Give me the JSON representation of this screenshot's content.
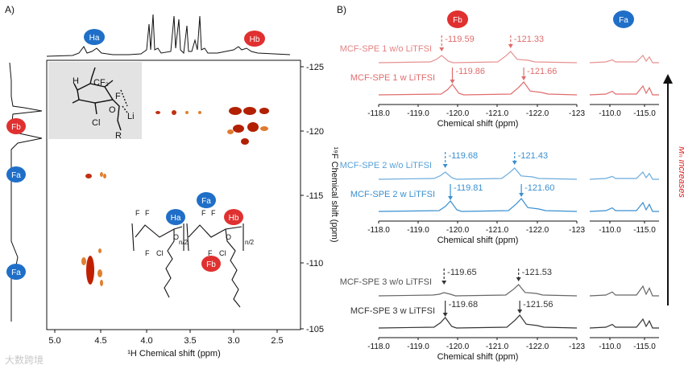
{
  "panel_a": {
    "label": "A)",
    "x_axis": {
      "label": "¹H Chemical shift (ppm)",
      "ticks": [
        "5.0",
        "4.5",
        "4.0",
        "3.5",
        "3.0",
        "2.5"
      ]
    },
    "y_axis": {
      "label": "¹⁹F Chemical shift (ppm)",
      "ticks": [
        "-125",
        "-120",
        "-115",
        "-110",
        "-105"
      ]
    },
    "badges": {
      "ha": "Ha",
      "hb": "Hb",
      "fa": "Fa",
      "fb": "Fb"
    },
    "structure_labels": {
      "h": "H",
      "cf2": "CF₂",
      "f": "F",
      "li": "Li",
      "o": "O",
      "cl": "Cl",
      "r": "R",
      "n2": "n/2",
      "o_chain": "O"
    }
  },
  "panel_b": {
    "label": "B)",
    "header_badges": {
      "fb": "Fb",
      "fa": "Fa"
    },
    "trend_label": "Mₙ increases",
    "groups": [
      {
        "color": "#e06c6c",
        "wo_label": "MCF-SPE 1 w/o LiTFSI",
        "w_label": "MCF-SPE 1 w LiTFSI",
        "wo_peaks": [
          "-119.59",
          "-121.33"
        ],
        "w_peaks": [
          "-119.86",
          "-121.66"
        ],
        "xlabel": "Chemical shift (ppm)",
        "ticks_main": [
          "-118.0",
          "-119.0",
          "-120.0",
          "-121.0",
          "-122.0",
          "-123"
        ],
        "ticks_side": [
          "-110.0",
          "-115.0"
        ]
      },
      {
        "color": "#3a8fd0",
        "wo_label": "MCF-SPE 2 w/o LiTFSI",
        "w_label": "MCF-SPE 2 w LiTFSI",
        "wo_peaks": [
          "-119.68",
          "-121.43"
        ],
        "w_peaks": [
          "-119.81",
          "-121.60"
        ],
        "xlabel": "Chemical shift (ppm)",
        "ticks_main": [
          "-118.0",
          "-119.0",
          "-120.0",
          "-121.0",
          "-122.0",
          "-123"
        ],
        "ticks_side": [
          "-110.0",
          "-115.0"
        ]
      },
      {
        "color": "#333333",
        "wo_label": "MCF-SPE 3 w/o LiTFSI",
        "w_label": "MCF-SPE 3 w LiTFSI",
        "wo_peaks": [
          "-119.65",
          "-121.53"
        ],
        "w_peaks": [
          "-119.68",
          "-121.56"
        ],
        "xlabel": "Chemical shift (ppm)",
        "ticks_main": [
          "-118.0",
          "-119.0",
          "-120.0",
          "-121.0",
          "-122.0",
          "-123"
        ],
        "ticks_side": [
          "-110.0",
          "-115.0"
        ]
      }
    ]
  },
  "watermark": "大数跨境"
}
